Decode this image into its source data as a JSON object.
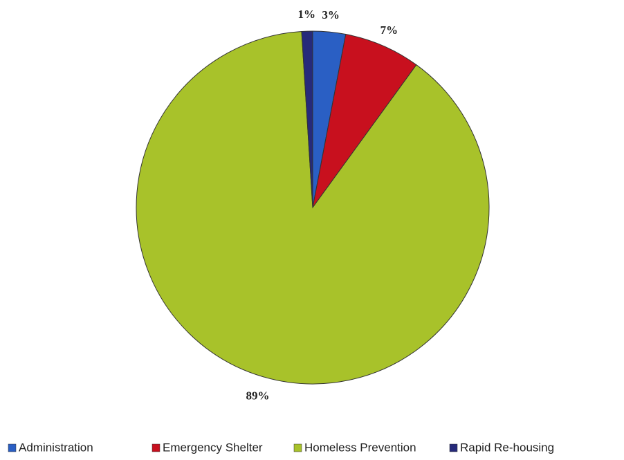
{
  "chart_data": {
    "type": "pie",
    "categories": [
      "Administration",
      "Emergency Shelter",
      "Homeless Prevention",
      "Rapid Re-housing"
    ],
    "values": [
      3,
      7,
      89,
      1
    ],
    "value_labels": [
      "3%",
      "7%",
      "89%",
      "1%"
    ],
    "colors": [
      "#2a5fc4",
      "#c8101e",
      "#a8c22a",
      "#262a7a"
    ],
    "legend": "bottom"
  }
}
